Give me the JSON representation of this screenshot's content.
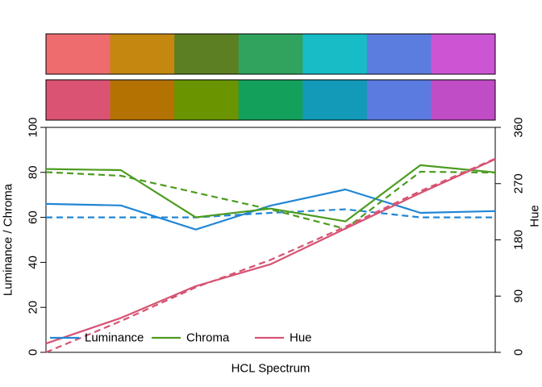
{
  "chart_data": {
    "type": "line",
    "title": "",
    "xlabel": "HCL Spectrum",
    "ylabel_left": "Luminance / Chroma",
    "ylabel_right": "Hue",
    "x": [
      1,
      2,
      3,
      4,
      5,
      6,
      7
    ],
    "ylim_left": [
      0,
      100
    ],
    "ylim_right": [
      0,
      360
    ],
    "yticks_left": [
      0,
      20,
      40,
      60,
      80,
      100
    ],
    "yticks_right": [
      0,
      90,
      180,
      270,
      360
    ],
    "palette_rows": [
      {
        "name": "reference-palette",
        "colors": [
          "#ee6b6e",
          "#c4870f",
          "#5c7f21",
          "#31a35e",
          "#18bcc6",
          "#5c7de0",
          "#cc55d4"
        ]
      },
      {
        "name": "actual-palette",
        "colors": [
          "#da5373",
          "#b47202",
          "#6a9400",
          "#12a05b",
          "#129ab8",
          "#5c7be1",
          "#c04dc5"
        ]
      }
    ],
    "series": [
      {
        "name": "Luminance",
        "axis": "left",
        "style": "solid",
        "color": "#2186d4",
        "values": [
          66,
          65.3,
          54.6,
          65.2,
          72.4,
          62,
          62.8
        ]
      },
      {
        "name": "Luminance",
        "axis": "left",
        "style": "dashed",
        "color": "#2186d4",
        "values": [
          60,
          60,
          60,
          62,
          63.6,
          60,
          60
        ]
      },
      {
        "name": "Chroma",
        "axis": "left",
        "style": "solid",
        "color": "#4c9c1f",
        "values": [
          81.5,
          81,
          60,
          63.9,
          58.2,
          83.2,
          80
        ]
      },
      {
        "name": "Chroma",
        "axis": "left",
        "style": "dashed",
        "color": "#4c9c1f",
        "values": [
          80.1,
          78.5,
          71,
          63.5,
          54.9,
          80.3,
          79.9
        ]
      },
      {
        "name": "Hue",
        "axis": "right",
        "style": "solid",
        "color": "#d65373",
        "values": [
          14,
          55,
          106,
          141,
          198,
          255,
          309
        ]
      },
      {
        "name": "Hue",
        "axis": "right",
        "style": "dashed",
        "color": "#d65373",
        "values": [
          0,
          50,
          104,
          148,
          201,
          258,
          310
        ]
      }
    ],
    "legend": {
      "position": "bottom-left",
      "entries": [
        {
          "label": "Luminance",
          "color": "#2186d4"
        },
        {
          "label": "Chroma",
          "color": "#4c9c1f"
        },
        {
          "label": "Hue",
          "color": "#d65373"
        }
      ]
    }
  }
}
